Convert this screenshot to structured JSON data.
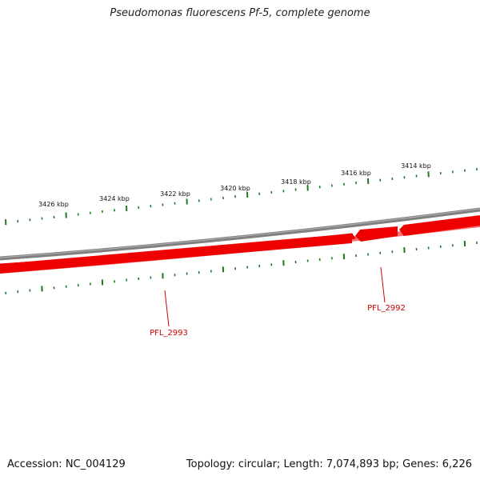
{
  "title": "Pseudomonas fluorescens Pf-5, complete genome",
  "footer": {
    "accession": "Accession: NC_004129",
    "topology": "Topology: circular; Length: 7,074,893 bp; Genes: 6,226"
  },
  "ticks": {
    "labels": [
      "3426 kbp",
      "3424 kbp",
      "3422 kbp",
      "3420 kbp",
      "3418 kbp",
      "3416 kbp",
      "3414 kbp"
    ]
  },
  "genes": [
    {
      "label": "PFL_2993",
      "strand": "reverse"
    },
    {
      "label": "PFL_2992",
      "strand": "reverse"
    }
  ],
  "colors": {
    "backbone": "#8a8a8a",
    "gene": "#ee0000",
    "gene_shadow": "#ff7070",
    "tick": "#1f7a1f",
    "gene_label": "#cc0000"
  }
}
